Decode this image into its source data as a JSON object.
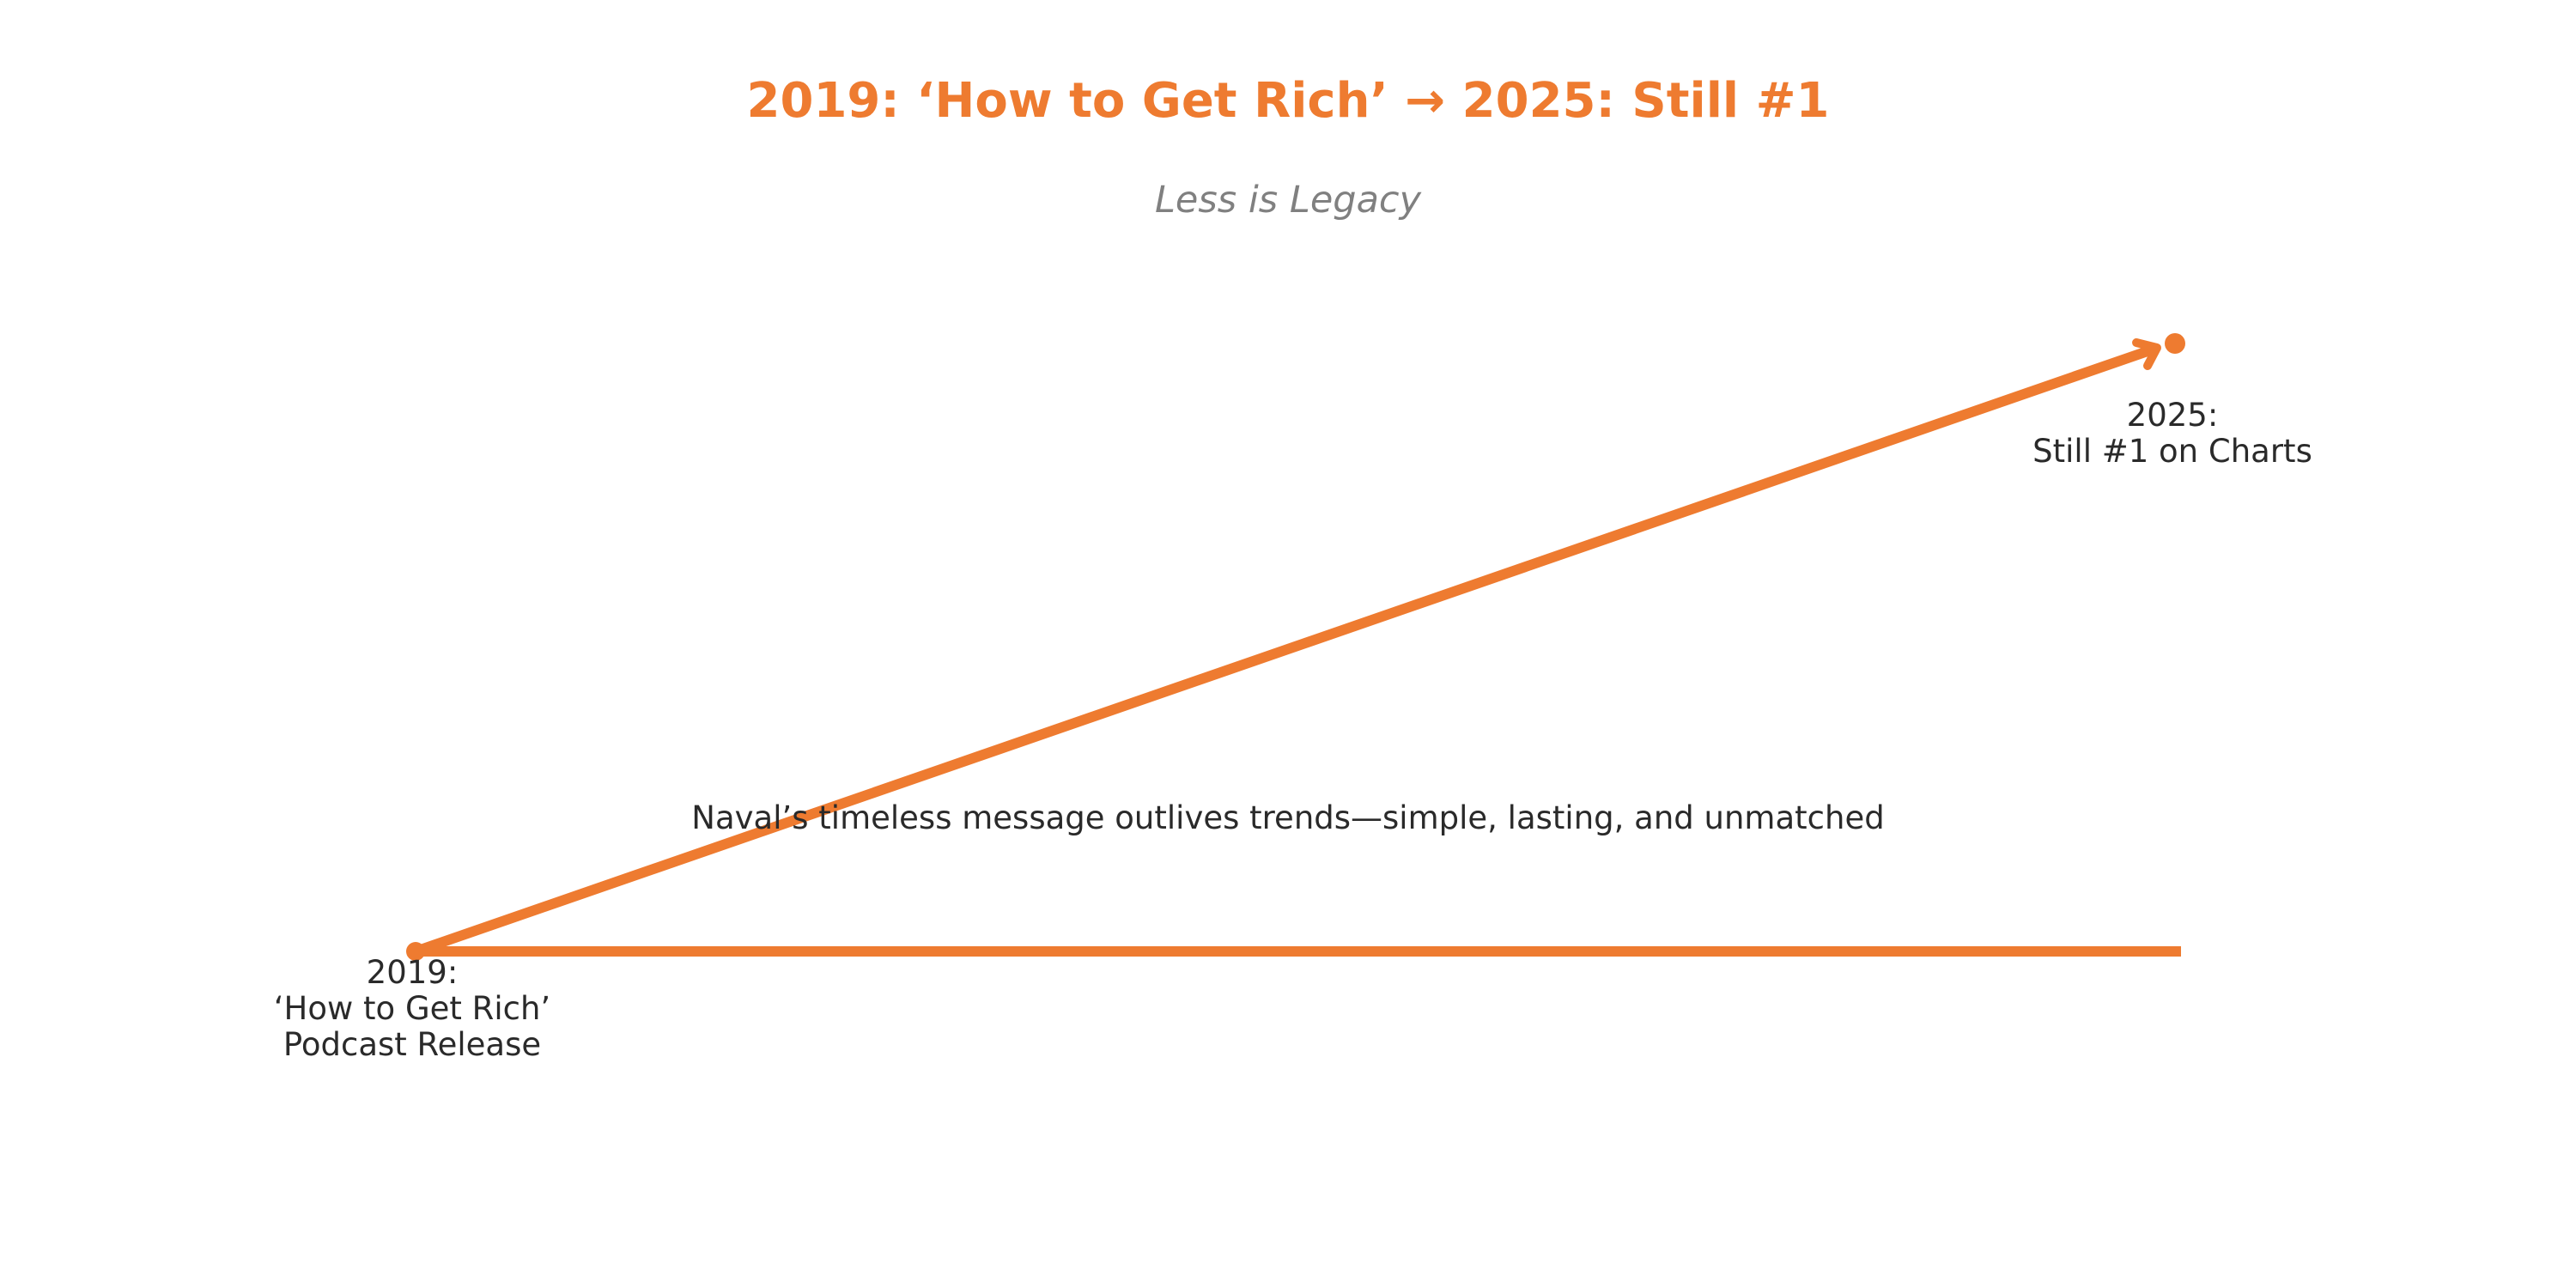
{
  "title": "2019: ‘How to Get Rich’ → 2025: Still #1",
  "subtitle": "Less is Legacy",
  "start": {
    "line1": "2019:",
    "line2": "‘How to Get Rich’",
    "line3": "Podcast Release"
  },
  "end": {
    "line1": "2025:",
    "line2": "Still #1 on Charts"
  },
  "caption": "Naval’s timeless message outlives trends—simple, lasting, and unmatched",
  "colors": {
    "accent": "#ee7b30",
    "text": "#2a2a2a",
    "subtitle": "#808080"
  }
}
